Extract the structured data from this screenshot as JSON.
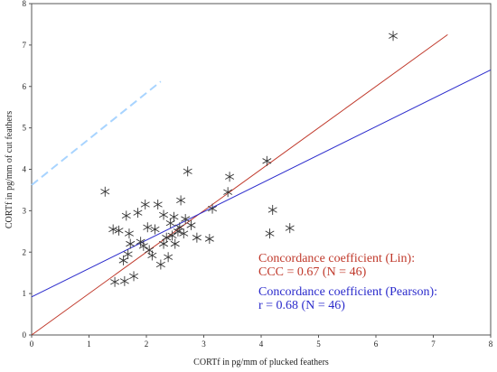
{
  "chart_data": {
    "type": "scatter",
    "xlabel": "CORTf in pg/mm of plucked feathers",
    "ylabel": "CORTf in pg/mm of cut feathers",
    "xlim": [
      0,
      8
    ],
    "ylim": [
      0,
      8
    ],
    "x_ticks": [
      "0",
      "1",
      "2",
      "3",
      "4",
      "5",
      "6",
      "7",
      "8"
    ],
    "y_ticks": [
      "0",
      "1",
      "2",
      "3",
      "4",
      "5",
      "6",
      "7",
      "8"
    ],
    "grid": false,
    "marker": "asterisk",
    "points": [
      {
        "x": 1.28,
        "y": 3.46
      },
      {
        "x": 1.42,
        "y": 2.55
      },
      {
        "x": 1.45,
        "y": 1.28
      },
      {
        "x": 1.6,
        "y": 1.8
      },
      {
        "x": 1.62,
        "y": 1.3
      },
      {
        "x": 1.65,
        "y": 2.88
      },
      {
        "x": 1.68,
        "y": 1.95
      },
      {
        "x": 1.7,
        "y": 2.45
      },
      {
        "x": 1.72,
        "y": 2.2
      },
      {
        "x": 1.78,
        "y": 1.42
      },
      {
        "x": 1.85,
        "y": 2.95
      },
      {
        "x": 1.9,
        "y": 2.25
      },
      {
        "x": 1.95,
        "y": 2.15
      },
      {
        "x": 1.98,
        "y": 3.15
      },
      {
        "x": 2.02,
        "y": 2.6
      },
      {
        "x": 2.05,
        "y": 2.05
      },
      {
        "x": 2.1,
        "y": 1.92
      },
      {
        "x": 2.15,
        "y": 2.55
      },
      {
        "x": 2.2,
        "y": 3.15
      },
      {
        "x": 2.25,
        "y": 1.7
      },
      {
        "x": 2.3,
        "y": 2.2
      },
      {
        "x": 2.35,
        "y": 2.35
      },
      {
        "x": 2.38,
        "y": 1.88
      },
      {
        "x": 2.42,
        "y": 2.7
      },
      {
        "x": 2.45,
        "y": 2.4
      },
      {
        "x": 2.48,
        "y": 2.85
      },
      {
        "x": 2.5,
        "y": 2.2
      },
      {
        "x": 2.55,
        "y": 2.5
      },
      {
        "x": 2.58,
        "y": 2.6
      },
      {
        "x": 2.6,
        "y": 3.25
      },
      {
        "x": 2.65,
        "y": 2.45
      },
      {
        "x": 2.68,
        "y": 2.8
      },
      {
        "x": 2.72,
        "y": 3.95
      },
      {
        "x": 2.78,
        "y": 2.65
      },
      {
        "x": 2.88,
        "y": 2.35
      },
      {
        "x": 3.1,
        "y": 2.32
      },
      {
        "x": 3.15,
        "y": 3.05
      },
      {
        "x": 3.42,
        "y": 3.45
      },
      {
        "x": 3.45,
        "y": 3.82
      },
      {
        "x": 4.1,
        "y": 4.2
      },
      {
        "x": 4.15,
        "y": 2.45
      },
      {
        "x": 4.2,
        "y": 3.02
      },
      {
        "x": 4.5,
        "y": 2.58
      },
      {
        "x": 6.3,
        "y": 7.22
      },
      {
        "x": 2.3,
        "y": 2.9
      },
      {
        "x": 1.52,
        "y": 2.52
      }
    ],
    "series": [
      {
        "name": "Concordance coefficient (Lin)",
        "line": "identity-fit",
        "color": "#c0392b",
        "intercept": 0.0,
        "slope": 1.0,
        "x_range": [
          0,
          7.25
        ]
      },
      {
        "name": "Concordance coefficient (Pearson)",
        "line": "regression",
        "color": "#2b2bcc",
        "intercept": 0.92,
        "slope": 0.685,
        "x_range": [
          0,
          8
        ]
      }
    ],
    "faint_line": {
      "color": "#a8d4ff",
      "x_range": [
        0,
        2.25
      ],
      "y_range": [
        3.62,
        6.12
      ]
    },
    "annotations": [
      {
        "text": "Concordance coefficient (Lin):",
        "color": "#c0392b"
      },
      {
        "text": "CCC = 0.67 (N = 46)",
        "color": "#c0392b"
      },
      {
        "text": "Concordance coefficient (Pearson):",
        "color": "#2b2bcc"
      },
      {
        "text": "r = 0.68 (N = 46)",
        "color": "#2b2bcc"
      }
    ]
  }
}
